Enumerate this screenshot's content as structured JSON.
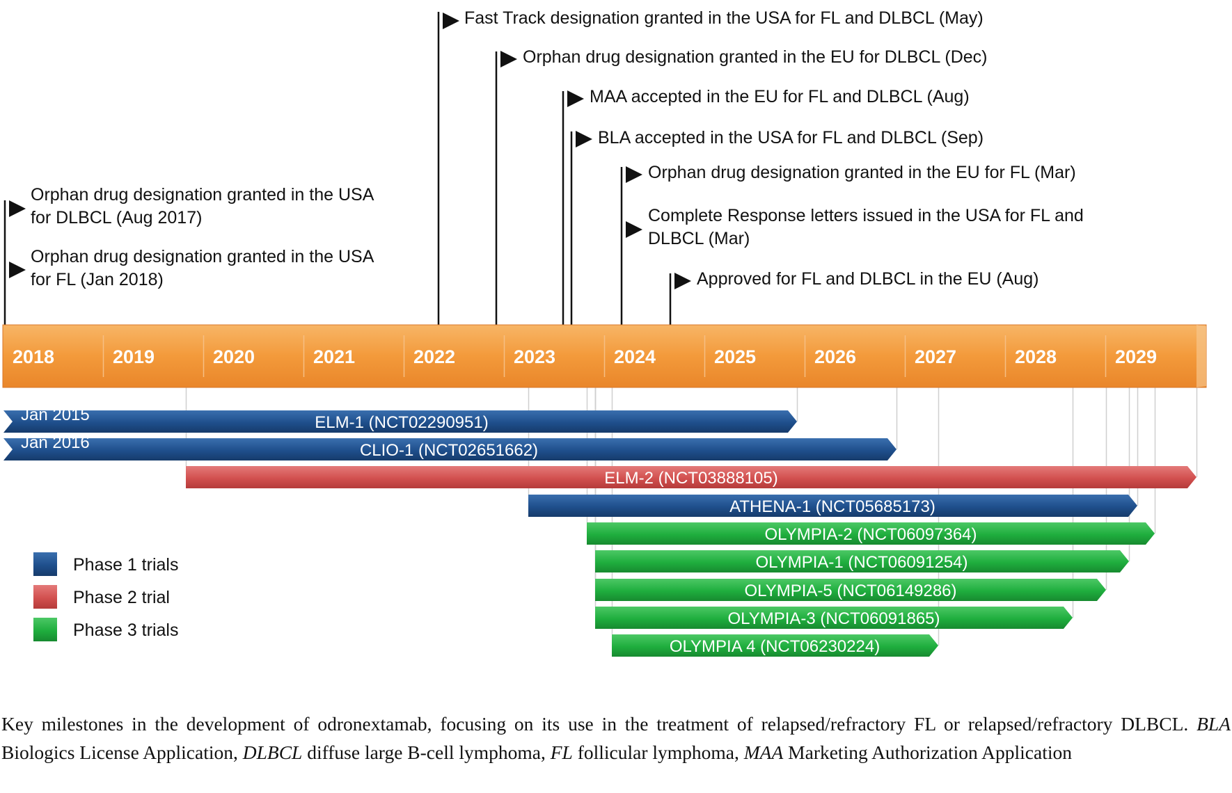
{
  "years": [
    "2018",
    "2019",
    "2020",
    "2021",
    "2022",
    "2023",
    "2024",
    "2025",
    "2026",
    "2027",
    "2028",
    "2029"
  ],
  "milestones": [
    {
      "lines": [
        "Fast Track designation granted in the USA for FL and DLBCL (May)"
      ]
    },
    {
      "lines": [
        "Orphan drug designation granted in the EU for DLBCL (Dec)"
      ]
    },
    {
      "lines": [
        "MAA accepted in the EU for FL and DLBCL (Aug)"
      ]
    },
    {
      "lines": [
        "BLA accepted in the USA for FL and DLBCL (Sep)"
      ]
    },
    {
      "lines": [
        "Orphan drug designation granted in the EU for FL (Mar)"
      ]
    },
    {
      "lines": [
        "Complete Response letters issued in the USA for FL and",
        "DLBCL (Mar)"
      ]
    },
    {
      "lines": [
        "Approved for FL and DLBCL in the EU (Aug)"
      ]
    },
    {
      "lines": [
        "Orphan drug designation granted in the USA",
        "for DLBCL (Aug 2017)"
      ]
    },
    {
      "lines": [
        "Orphan drug designation granted in the USA",
        "for FL (Jan 2018)"
      ]
    }
  ],
  "trials": [
    {
      "name": "ELM-1 (NCT02290951)",
      "phase": 1,
      "start_label": "Jan 2015"
    },
    {
      "name": "CLIO-1 (NCT02651662)",
      "phase": 1,
      "start_label": "Jan 2016"
    },
    {
      "name": "ELM-2 (NCT03888105)",
      "phase": 2
    },
    {
      "name": "ATHENA-1 (NCT05685173)",
      "phase": 1
    },
    {
      "name": "OLYMPIA-2 (NCT06097364)",
      "phase": 3
    },
    {
      "name": "OLYMPIA-1 (NCT06091254)",
      "phase": 3
    },
    {
      "name": "OLYMPIA-5 (NCT06149286)",
      "phase": 3
    },
    {
      "name": "OLYMPIA-3 (NCT06091865)",
      "phase": 3
    },
    {
      "name": "OLYMPIA 4 (NCT06230224)",
      "phase": 3
    }
  ],
  "legend": [
    {
      "label": "Phase 1 trials",
      "phase": 1
    },
    {
      "label": "Phase 2 trial",
      "phase": 2
    },
    {
      "label": "Phase 3 trials",
      "phase": 3
    }
  ],
  "colors": {
    "timeline": "#f39a3b",
    "phase1": "#1f4f8c",
    "phase2": "#d2504f",
    "phase3": "#1fae3e"
  },
  "caption": {
    "intro": "Key milestones in the development of odronextamab, focusing on its use in the treatment of relapsed/refractory FL or relapsed/refractory DLBCL. ",
    "abbreviations": [
      {
        "term": "BLA",
        "definition": "Biologics License Application"
      },
      {
        "term": "DLBCL",
        "definition": "diffuse large B-cell lymphoma"
      },
      {
        "term": "FL",
        "definition": "follicular lymphoma"
      },
      {
        "term": "MAA",
        "definition": "Marketing Authorization Application"
      }
    ]
  }
}
